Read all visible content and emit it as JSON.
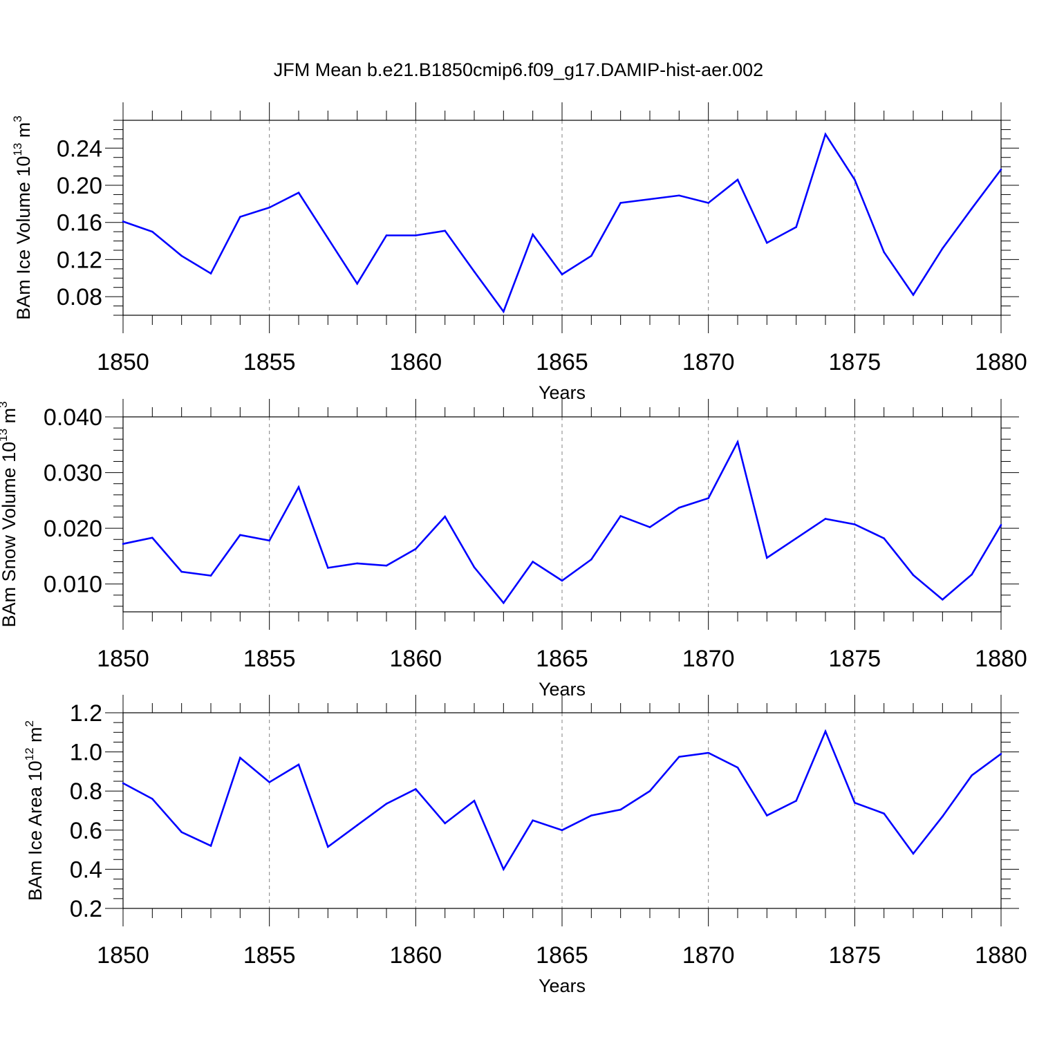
{
  "title": "JFM Mean b.e21.B1850cmip6.f09_g17.DAMIP-hist-aer.002",
  "line_color": "#0000ff",
  "chart_data": [
    {
      "type": "line",
      "xlabel": "Years",
      "ylabel": {
        "text": "BAm Ice Volume 10",
        "sup1": "13",
        "mid": " m",
        "sup2": "3"
      },
      "xlim": [
        1850,
        1880
      ],
      "ylim": [
        0.06,
        0.27
      ],
      "xticks": [
        1850,
        1855,
        1860,
        1865,
        1870,
        1875,
        1880
      ],
      "xtick_labels": [
        "1850",
        "1855",
        "1860",
        "1865",
        "1870",
        "1875",
        "1880"
      ],
      "yticks": [
        0.08,
        0.12,
        0.16,
        0.2,
        0.24
      ],
      "ytick_labels": [
        "0.08",
        "0.12",
        "0.16",
        "0.20",
        "0.24"
      ],
      "ytick_minor_step": 0.01,
      "grid": "x-dashed",
      "x": [
        1850,
        1851,
        1852,
        1853,
        1854,
        1855,
        1856,
        1857,
        1858,
        1859,
        1860,
        1861,
        1862,
        1863,
        1864,
        1865,
        1866,
        1867,
        1868,
        1869,
        1870,
        1871,
        1872,
        1873,
        1874,
        1875,
        1876,
        1877,
        1878,
        1879,
        1880
      ],
      "series": [
        {
          "values": [
            0.161,
            0.15,
            0.124,
            0.105,
            0.166,
            0.176,
            0.192,
            0.143,
            0.094,
            0.146,
            0.146,
            0.151,
            0.107,
            0.064,
            0.147,
            0.104,
            0.124,
            0.181,
            0.185,
            0.189,
            0.181,
            0.206,
            0.138,
            0.155,
            0.255,
            0.206,
            0.128,
            0.082,
            0.132,
            0.175,
            0.217
          ]
        }
      ]
    },
    {
      "type": "line",
      "xlabel": "Years",
      "ylabel": {
        "text": "BAm Snow Volume 10",
        "sup1": "13",
        "mid": " m",
        "sup2": "3"
      },
      "xlim": [
        1850,
        1880
      ],
      "ylim": [
        0.005,
        0.04
      ],
      "xticks": [
        1850,
        1855,
        1860,
        1865,
        1870,
        1875,
        1880
      ],
      "xtick_labels": [
        "1850",
        "1855",
        "1860",
        "1865",
        "1870",
        "1875",
        "1880"
      ],
      "yticks": [
        0.01,
        0.02,
        0.03,
        0.04
      ],
      "ytick_labels": [
        "0.010",
        "0.020",
        "0.030",
        "0.040"
      ],
      "ytick_minor_step": 0.002,
      "grid": "x-dashed",
      "x": [
        1850,
        1851,
        1852,
        1853,
        1854,
        1855,
        1856,
        1857,
        1858,
        1859,
        1860,
        1861,
        1862,
        1863,
        1864,
        1865,
        1866,
        1867,
        1868,
        1869,
        1870,
        1871,
        1872,
        1873,
        1874,
        1875,
        1876,
        1877,
        1878,
        1879,
        1880
      ],
      "series": [
        {
          "values": [
            0.0172,
            0.0183,
            0.0122,
            0.0115,
            0.0188,
            0.0178,
            0.0274,
            0.0129,
            0.0137,
            0.0133,
            0.0163,
            0.0221,
            0.013,
            0.0066,
            0.014,
            0.0106,
            0.0144,
            0.0222,
            0.0202,
            0.0237,
            0.0254,
            0.0355,
            0.0147,
            0.0182,
            0.0217,
            0.0207,
            0.0182,
            0.0116,
            0.0072,
            0.0117,
            0.0206
          ]
        }
      ]
    },
    {
      "type": "line",
      "xlabel": "Years",
      "ylabel": {
        "text": "BAm Ice Area 10",
        "sup1": "12",
        "mid": " m",
        "sup2": "2"
      },
      "xlim": [
        1850,
        1880
      ],
      "ylim": [
        0.2,
        1.2
      ],
      "xticks": [
        1850,
        1855,
        1860,
        1865,
        1870,
        1875,
        1880
      ],
      "xtick_labels": [
        "1850",
        "1855",
        "1860",
        "1865",
        "1870",
        "1875",
        "1880"
      ],
      "yticks": [
        0.2,
        0.4,
        0.6,
        0.8,
        1.0,
        1.2
      ],
      "ytick_labels": [
        "0.2",
        "0.4",
        "0.6",
        "0.8",
        "1.0",
        "1.2"
      ],
      "ytick_minor_step": 0.05,
      "grid": "x-dashed",
      "x": [
        1850,
        1851,
        1852,
        1853,
        1854,
        1855,
        1856,
        1857,
        1858,
        1859,
        1860,
        1861,
        1862,
        1863,
        1864,
        1865,
        1866,
        1867,
        1868,
        1869,
        1870,
        1871,
        1872,
        1873,
        1874,
        1875,
        1876,
        1877,
        1878,
        1879,
        1880
      ],
      "series": [
        {
          "values": [
            0.84,
            0.76,
            0.59,
            0.52,
            0.97,
            0.845,
            0.935,
            0.515,
            0.625,
            0.735,
            0.81,
            0.635,
            0.75,
            0.4,
            0.65,
            0.6,
            0.675,
            0.705,
            0.8,
            0.975,
            0.995,
            0.92,
            0.675,
            0.75,
            1.105,
            0.74,
            0.685,
            0.48,
            0.67,
            0.88,
            0.99
          ]
        }
      ]
    }
  ]
}
